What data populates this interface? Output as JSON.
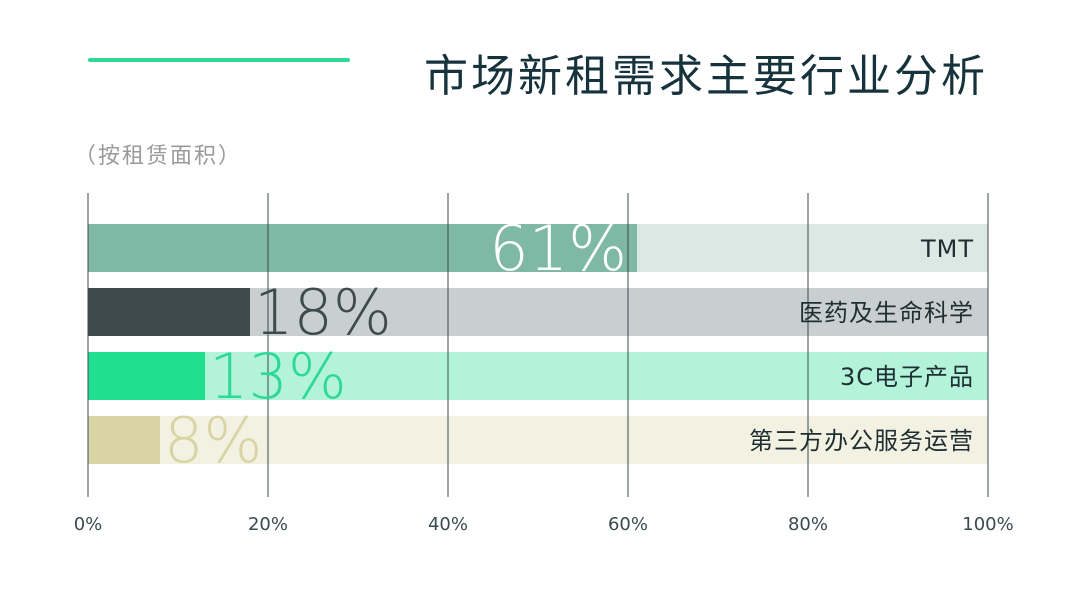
{
  "header": {
    "title": "市场新租需求主要行业分析",
    "subtitle": "（按租赁面积）",
    "accent_color": "#2fd895"
  },
  "chart_data": {
    "type": "bar",
    "orientation": "horizontal",
    "categories": [
      "TMT",
      "医药及生命科学",
      "3C电子产品",
      "第三方办公服务运营"
    ],
    "values": [
      61,
      18,
      13,
      8
    ],
    "value_labels": [
      "61%",
      "18%",
      "13%",
      "8%"
    ],
    "unit": "%",
    "xlim": [
      0,
      100
    ],
    "xticks": [
      0,
      20,
      40,
      60,
      80,
      100
    ],
    "xtick_labels": [
      "0%",
      "20%",
      "40%",
      "60%",
      "80%",
      "100%"
    ],
    "grid": "vertical",
    "bar_colors": [
      "#7fb8a5",
      "#3f4a4d",
      "#1fe08f",
      "#d8d4a4"
    ],
    "track_colors": [
      "#dce8e3",
      "#c9cfd0",
      "#b3f3d9",
      "#f3f1e1"
    ],
    "value_label_colors": [
      "#ffffff",
      "#3f4a4d",
      "#2fd895",
      "#d8d4a4"
    ]
  }
}
